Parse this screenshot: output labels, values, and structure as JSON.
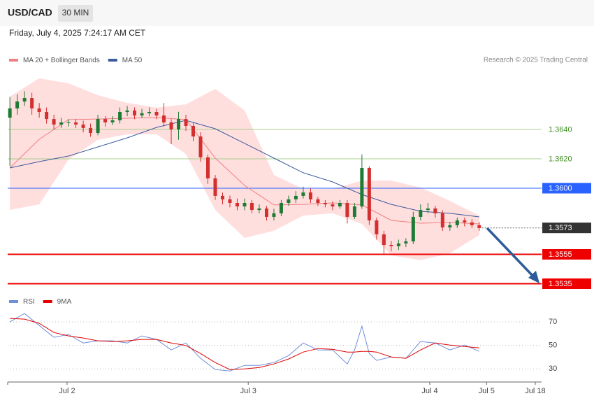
{
  "header": {
    "symbol": "USD/CAD",
    "interval": "30 MIN",
    "datetime": "Friday, July 4, 2025 7:24:17 AM CET",
    "source": "Research © 2025 Trading Central"
  },
  "chart_data": [
    {
      "type": "candlestick",
      "xlim": [
        -0.3,
        72.5
      ],
      "ylim": [
        1.353,
        1.368
      ],
      "up_color": "#1e7b34",
      "down_color": "#d32f2f",
      "open": [
        1.3648,
        1.36543,
        1.3659,
        1.36614,
        1.36543,
        1.36519,
        1.36471,
        1.36433,
        1.36448,
        1.36448,
        1.36433,
        1.3641,
        1.36376,
        1.36471,
        1.36448,
        1.36462,
        1.36519,
        1.36529,
        1.36495,
        1.3651,
        1.36519,
        1.36495,
        1.36448,
        1.364,
        1.36471,
        1.36424,
        1.36352,
        1.3621,
        1.36067,
        1.35948,
        1.35924,
        1.359,
        1.35876,
        1.359,
        1.35852,
        1.35862,
        1.35805,
        1.35829,
        1.359,
        1.35924,
        1.35948,
        1.35971,
        1.35924,
        1.359,
        1.3589,
        1.35876,
        1.359,
        1.35805,
        1.35876,
        1.36138,
        1.35781,
        1.35686,
        1.35614,
        1.35605,
        1.35624,
        1.35638,
        1.35805,
        1.35852,
        1.35862,
        1.35829,
        1.35733,
        1.35748,
        1.35781,
        1.35767,
        1.35748
      ],
      "high": [
        1.3662,
        1.3664,
        1.3666,
        1.3665,
        1.3658,
        1.3655,
        1.365,
        1.3648,
        1.3647,
        1.3647,
        1.3646,
        1.3644,
        1.365,
        1.3649,
        1.3649,
        1.3655,
        1.3656,
        1.3655,
        1.3654,
        1.3655,
        1.3654,
        1.3658,
        1.3647,
        1.3652,
        1.365,
        1.3645,
        1.3638,
        1.3623,
        1.3609,
        1.3597,
        1.3595,
        1.3593,
        1.3593,
        1.3592,
        1.3589,
        1.3588,
        1.3586,
        1.3592,
        1.3595,
        1.3598,
        1.3601,
        1.36,
        1.3594,
        1.3592,
        1.3591,
        1.3592,
        1.3592,
        1.359,
        1.3623,
        1.3615,
        1.358,
        1.3571,
        1.3564,
        1.3565,
        1.3566,
        1.3584,
        1.3589,
        1.359,
        1.3588,
        1.3585,
        1.3577,
        1.358,
        1.358,
        1.3579,
        1.3577
      ],
      "low": [
        1.3615,
        1.365,
        1.3656,
        1.365,
        1.3648,
        1.3644,
        1.364,
        1.3641,
        1.3642,
        1.3641,
        1.3638,
        1.3635,
        1.3636,
        1.3642,
        1.3643,
        1.3644,
        1.3649,
        1.3647,
        1.3648,
        1.3649,
        1.3647,
        1.3642,
        1.363,
        1.3633,
        1.3639,
        1.3632,
        1.3618,
        1.3603,
        1.3592,
        1.3589,
        1.3587,
        1.3585,
        1.3585,
        1.3583,
        1.3583,
        1.3578,
        1.3578,
        1.3581,
        1.3588,
        1.359,
        1.3593,
        1.359,
        1.3588,
        1.3587,
        1.3585,
        1.3586,
        1.3576,
        1.3579,
        1.3586,
        1.3575,
        1.3565,
        1.3555,
        1.3557,
        1.3558,
        1.356,
        1.3562,
        1.3578,
        1.3583,
        1.358,
        1.3571,
        1.3571,
        1.3573,
        1.3574,
        1.3573,
        1.3571
      ],
      "close": [
        1.36543,
        1.3659,
        1.36614,
        1.36543,
        1.36519,
        1.36471,
        1.36433,
        1.36448,
        1.36448,
        1.36433,
        1.3641,
        1.36376,
        1.36471,
        1.36448,
        1.36462,
        1.36519,
        1.36529,
        1.36495,
        1.3651,
        1.36519,
        1.36495,
        1.36448,
        1.364,
        1.36471,
        1.36424,
        1.36352,
        1.3621,
        1.36067,
        1.35948,
        1.35924,
        1.359,
        1.35876,
        1.359,
        1.35852,
        1.35862,
        1.35805,
        1.35829,
        1.359,
        1.35924,
        1.35948,
        1.35971,
        1.35924,
        1.359,
        1.3589,
        1.35876,
        1.359,
        1.35805,
        1.35876,
        1.36138,
        1.35781,
        1.35686,
        1.35614,
        1.35605,
        1.35624,
        1.35638,
        1.35805,
        1.35852,
        1.35862,
        1.35829,
        1.35733,
        1.35748,
        1.35781,
        1.35767,
        1.35748,
        1.35729
      ],
      "series": [
        {
          "name": "MA 20 + Bollinger Bands",
          "color": "#f08080",
          "band_color": "#ffdede",
          "x": [
            0,
            4,
            8,
            12,
            16,
            20,
            24,
            28,
            32,
            36,
            40,
            44,
            48,
            52,
            56,
            60,
            64
          ],
          "values": [
            1.36138,
            1.36333,
            1.36467,
            1.36471,
            1.36476,
            1.36481,
            1.36467,
            1.36205,
            1.36019,
            1.35886,
            1.3589,
            1.359,
            1.35886,
            1.35781,
            1.35762,
            1.35767,
            1.35757
          ],
          "upper": [
            1.36624,
            1.36748,
            1.36714,
            1.36633,
            1.36581,
            1.36548,
            1.36571,
            1.36676,
            1.36529,
            1.3609,
            1.35995,
            1.35995,
            1.36052,
            1.36052,
            1.36005,
            1.35914,
            1.35814
          ],
          "lower": [
            1.35852,
            1.3589,
            1.36195,
            1.36329,
            1.36367,
            1.36367,
            1.36233,
            1.35852,
            1.35662,
            1.3571,
            1.35814,
            1.35829,
            1.35757,
            1.35543,
            1.3551,
            1.35557,
            1.35681
          ]
        },
        {
          "name": "MA 50",
          "color": "#3b5b9c",
          "x": [
            0,
            4,
            8,
            12,
            16,
            20,
            24,
            28,
            32,
            36,
            40,
            44,
            48,
            52,
            56,
            60,
            64
          ],
          "values": [
            1.36138,
            1.36181,
            1.36219,
            1.36281,
            1.36343,
            1.36414,
            1.36462,
            1.36405,
            1.36305,
            1.36205,
            1.36105,
            1.36043,
            1.35957,
            1.3589,
            1.35843,
            1.35829,
            1.35805
          ]
        }
      ],
      "levels": [
        {
          "value": 1.364,
          "label": "1.3640",
          "color": "#a8d08d",
          "text_color": "#3c8f1c",
          "box": false,
          "dashed": false
        },
        {
          "value": 1.362,
          "label": "1.3620",
          "color": "#a8d08d",
          "text_color": "#3c8f1c",
          "box": false,
          "dashed": false
        },
        {
          "value": 1.36,
          "label": "1.3600",
          "color": "#2962ff",
          "text_color": "#ffffff",
          "box": true,
          "dashed": false
        },
        {
          "value": 1.3573,
          "label": "1.3573",
          "color": "#333333",
          "text_color": "#ffffff",
          "box": true,
          "dashed": true
        },
        {
          "value": 1.3555,
          "label": "1.3555",
          "color": "#ee0000",
          "text_color": "#ffffff",
          "box": true,
          "dashed": false
        },
        {
          "value": 1.3535,
          "label": "1.3535",
          "color": "#ee0000",
          "text_color": "#ffffff",
          "box": true,
          "dashed": false
        }
      ]
    },
    {
      "type": "line",
      "xlim": [
        -0.3,
        72.5
      ],
      "ylim": [
        20,
        82
      ],
      "yticks": [
        30,
        50,
        70
      ],
      "grid": true,
      "xticks": [
        {
          "value": 7.8,
          "label": "Jul 2"
        },
        {
          "value": 32.5,
          "label": "Jul 3"
        },
        {
          "value": 57.25,
          "label": "Jul 4"
        },
        {
          "value": 65,
          "label": "Jul 5"
        },
        {
          "value": 71.64,
          "label": "Jul 18"
        }
      ],
      "series": [
        {
          "name": "RSI",
          "color": "#6f8fd8",
          "x": [
            0,
            2,
            4,
            6,
            8,
            10,
            12,
            14,
            16,
            18,
            20,
            22,
            24,
            26,
            28,
            30,
            32,
            34,
            36,
            38,
            40,
            42,
            44,
            46,
            47,
            48,
            49,
            50,
            52,
            54,
            56,
            58,
            60,
            62,
            64
          ],
          "values": [
            70,
            77.2,
            67,
            56.9,
            59.3,
            52.1,
            53.9,
            53.9,
            52.1,
            58.1,
            55.1,
            46.1,
            52.1,
            39,
            29.4,
            28.2,
            33,
            33,
            35.4,
            41.3,
            52.1,
            46.1,
            46.1,
            34.2,
            46.1,
            66.4,
            43.1,
            37.2,
            40.1,
            39,
            53.3,
            52.1,
            46.1,
            50.3,
            44.9
          ]
        },
        {
          "name": "9MA",
          "color": "#e00000",
          "x": [
            0,
            2,
            4,
            6,
            8,
            10,
            12,
            14,
            16,
            18,
            20,
            22,
            24,
            26,
            28,
            30,
            32,
            34,
            36,
            38,
            40,
            42,
            44,
            46,
            47,
            48,
            49,
            50,
            52,
            54,
            56,
            58,
            60,
            62,
            64
          ],
          "values": [
            73,
            72.4,
            68.8,
            61,
            58.1,
            56.3,
            53.9,
            53.3,
            53.9,
            55.1,
            55.1,
            52.1,
            49.9,
            43.1,
            35.4,
            29.4,
            30,
            31.2,
            34.2,
            38.4,
            44.3,
            47.3,
            46.7,
            44.3,
            44.3,
            44.9,
            44.9,
            44.3,
            40.1,
            39,
            46.1,
            52.1,
            50.3,
            49.1,
            47.9
          ]
        }
      ]
    }
  ]
}
